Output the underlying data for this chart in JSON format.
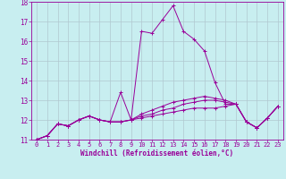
{
  "xlabel": "Windchill (Refroidissement éolien,°C)",
  "xlim": [
    -0.5,
    23.5
  ],
  "ylim": [
    11,
    18
  ],
  "yticks": [
    11,
    12,
    13,
    14,
    15,
    16,
    17,
    18
  ],
  "xticks": [
    0,
    1,
    2,
    3,
    4,
    5,
    6,
    7,
    8,
    9,
    10,
    11,
    12,
    13,
    14,
    15,
    16,
    17,
    18,
    19,
    20,
    21,
    22,
    23
  ],
  "background_color": "#c8eef0",
  "line_color": "#990099",
  "grid_color": "#b0c8d0",
  "lines": [
    [
      11.0,
      11.2,
      11.8,
      11.7,
      12.0,
      12.2,
      12.0,
      11.9,
      13.4,
      12.0,
      16.5,
      16.4,
      17.1,
      17.8,
      16.5,
      16.1,
      15.5,
      13.9,
      12.8,
      12.8,
      11.9,
      11.6,
      12.1,
      12.7
    ],
    [
      11.0,
      11.2,
      11.8,
      11.7,
      12.0,
      12.2,
      12.0,
      11.9,
      11.9,
      12.0,
      12.1,
      12.2,
      12.3,
      12.4,
      12.5,
      12.6,
      12.6,
      12.6,
      12.7,
      12.8,
      11.9,
      11.6,
      12.1,
      12.7
    ],
    [
      11.0,
      11.2,
      11.8,
      11.7,
      12.0,
      12.2,
      12.0,
      11.9,
      11.9,
      12.0,
      12.2,
      12.3,
      12.5,
      12.6,
      12.8,
      12.9,
      13.0,
      13.0,
      12.9,
      12.8,
      11.9,
      11.6,
      12.1,
      12.7
    ],
    [
      11.0,
      11.2,
      11.8,
      11.7,
      12.0,
      12.2,
      12.0,
      11.9,
      11.9,
      12.0,
      12.3,
      12.5,
      12.7,
      12.9,
      13.0,
      13.1,
      13.2,
      13.1,
      13.0,
      12.8,
      11.9,
      11.6,
      12.1,
      12.7
    ]
  ],
  "tick_fontsize": 5.0,
  "xlabel_fontsize": 5.5
}
